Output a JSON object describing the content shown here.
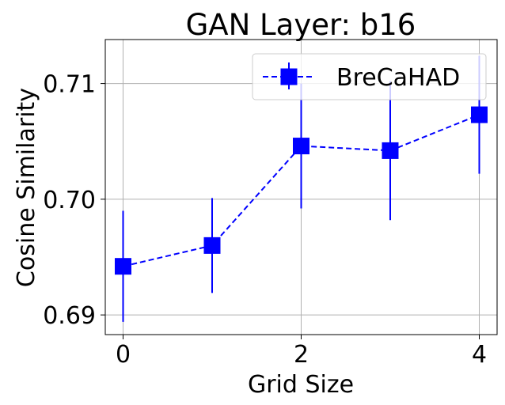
{
  "chart_data": {
    "type": "line",
    "title": "GAN Layer: b16",
    "xlabel": "Grid Size",
    "ylabel": "Cosine Similarity",
    "xlim": [
      -0.2,
      4.2
    ],
    "ylim": [
      0.6883,
      0.7138
    ],
    "xticks": [
      0,
      2,
      4
    ],
    "yticks": [
      0.69,
      0.7,
      0.71
    ],
    "xtick_labels": [
      "0",
      "2",
      "4"
    ],
    "ytick_labels": [
      "0.69",
      "0.70",
      "0.71"
    ],
    "grid": true,
    "legend_position": "upper right",
    "series": [
      {
        "name": "BreCaHAD",
        "color": "#0000ff",
        "marker": "square",
        "linestyle": "dashed",
        "x": [
          0,
          1,
          2,
          3,
          4
        ],
        "y": [
          0.6942,
          0.696,
          0.7046,
          0.7042,
          0.7073
        ],
        "yerr": [
          0.0048,
          0.0041,
          0.0054,
          0.006,
          0.0051
        ]
      }
    ]
  }
}
